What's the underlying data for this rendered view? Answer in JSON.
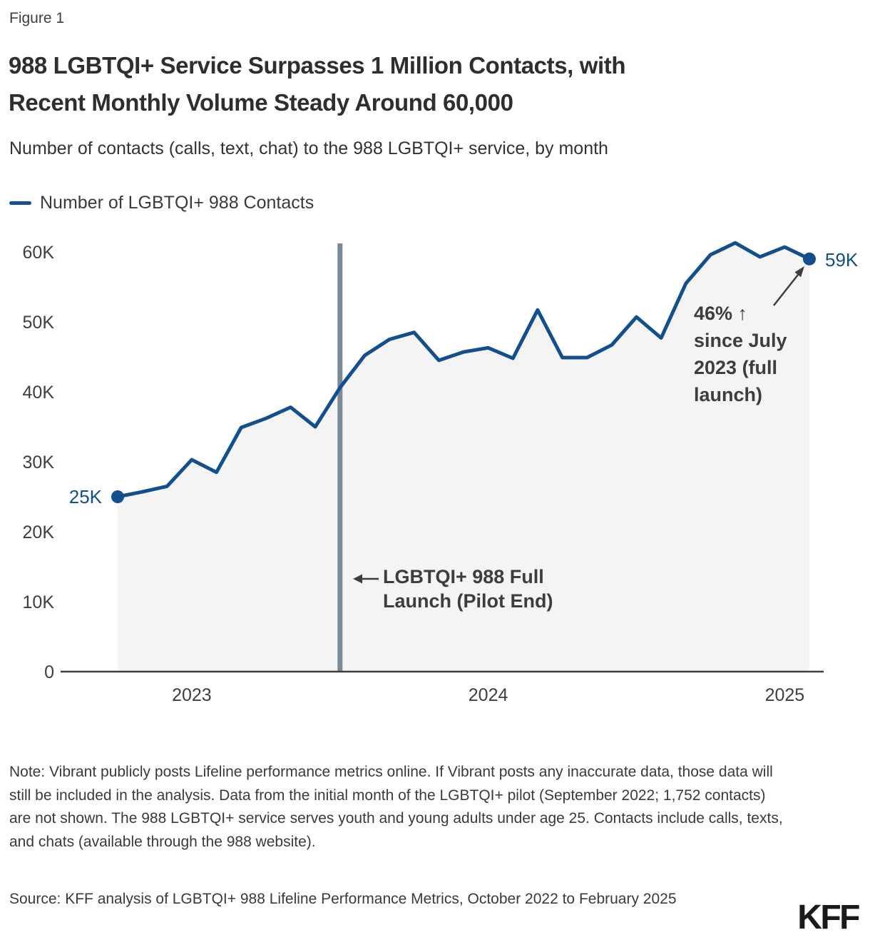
{
  "figure_label": "Figure 1",
  "title_line1": "988 LGBTQI+ Service Surpasses 1 Million Contacts, with",
  "title_line2": "Recent Monthly Volume Steady Around 60,000",
  "subtitle": "Number of contacts (calls, text, chat) to the 988 LGBTQI+ service, by month",
  "legend": {
    "label": "Number of LGBTQI+ 988 Contacts"
  },
  "chart_data": {
    "type": "area",
    "title": "988 LGBTQI+ Service Surpasses 1 Million Contacts, with Recent Monthly Volume Steady Around 60,000",
    "series_name": "Number of LGBTQI+ 988 Contacts",
    "x": [
      "Oct 2022",
      "Nov 2022",
      "Dec 2022",
      "Jan 2023",
      "Feb 2023",
      "Mar 2023",
      "Apr 2023",
      "May 2023",
      "Jun 2023",
      "Jul 2023",
      "Aug 2023",
      "Sep 2023",
      "Oct 2023",
      "Nov 2023",
      "Dec 2023",
      "Jan 2024",
      "Feb 2024",
      "Mar 2024",
      "Apr 2024",
      "May 2024",
      "Jun 2024",
      "Jul 2024",
      "Aug 2024",
      "Sep 2024",
      "Oct 2024",
      "Nov 2024",
      "Dec 2024",
      "Jan 2025",
      "Feb 2025"
    ],
    "values_thousands": [
      25.0,
      25.7,
      26.5,
      30.3,
      28.5,
      34.9,
      36.2,
      37.8,
      35.0,
      40.6,
      45.2,
      47.5,
      48.5,
      44.5,
      45.7,
      46.3,
      44.8,
      51.7,
      44.9,
      44.9,
      46.7,
      50.7,
      47.7,
      55.5,
      59.6,
      61.3,
      59.3,
      60.7,
      59.0
    ],
    "ylim_thousands": [
      0,
      62
    ],
    "y_ticks": [
      "0",
      "10K",
      "20K",
      "30K",
      "40K",
      "50K",
      "60K"
    ],
    "x_ticks": [
      "2023",
      "2024",
      "2025"
    ],
    "grid": "off",
    "legend_position": "top-left",
    "first_point_label": "25K",
    "last_point_label": "59K",
    "vline_month": "Jul 2023"
  },
  "annotations": {
    "full_launch": {
      "line1": "LGBTQI+ 988 Full",
      "line2": "Launch (Pilot End)"
    },
    "increase": {
      "line1": "46% ↑",
      "line2": "since July",
      "line3": "2023 (full",
      "line4": "launch)"
    }
  },
  "note": "Note: Vibrant publicly posts Lifeline performance metrics online. If Vibrant posts any inaccurate data, those data will still be included in the analysis. Data from the initial month of the LGBTQI+ pilot (September 2022; 1,752 contacts) are not shown. The 988 LGBTQI+ service serves youth and young adults under age 25. Contacts include calls, texts, and chats (available through the 988 website).",
  "source": "Source: KFF analysis of LGBTQI+ 988 Lifeline Performance Metrics, October 2022 to February 2025",
  "logo": "KFF",
  "colors": {
    "line": "#134f8c",
    "area_fill": "#f4f4f4",
    "vline": "#7b8a99",
    "axis": "#404040",
    "annotation_text": "#3d3d3d",
    "point_label": "#134f8c"
  }
}
